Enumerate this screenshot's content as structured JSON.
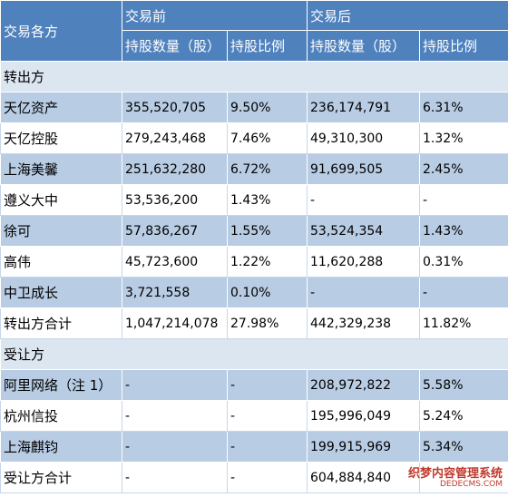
{
  "header": {
    "party_col": "交易各方",
    "before_group": "交易前",
    "after_group": "交易后",
    "shares_label": "持股数量（股）",
    "ratio_label": "持股比例"
  },
  "sections": [
    {
      "title": "转出方",
      "rows": [
        {
          "name": "天亿资产",
          "before_shares": "355,520,705",
          "before_ratio": "9.50%",
          "after_shares": "236,174,791",
          "after_ratio": "6.31%"
        },
        {
          "name": "天亿控股",
          "before_shares": "279,243,468",
          "before_ratio": "7.46%",
          "after_shares": "49,310,300",
          "after_ratio": "1.32%"
        },
        {
          "name": "上海美馨",
          "before_shares": "251,632,280",
          "before_ratio": "6.72%",
          "after_shares": "91,699,505",
          "after_ratio": "2.45%"
        },
        {
          "name": "遵义大中",
          "before_shares": "53,536,200",
          "before_ratio": "1.43%",
          "after_shares": "-",
          "after_ratio": "-"
        },
        {
          "name": "徐可",
          "before_shares": "57,836,267",
          "before_ratio": "1.55%",
          "after_shares": "53,524,354",
          "after_ratio": "1.43%"
        },
        {
          "name": "高伟",
          "before_shares": "45,723,600",
          "before_ratio": "1.22%",
          "after_shares": "11,620,288",
          "after_ratio": "0.31%"
        },
        {
          "name": "中卫成长",
          "before_shares": "3,721,558",
          "before_ratio": "0.10%",
          "after_shares": "-",
          "after_ratio": "-"
        },
        {
          "name": "转出方合计",
          "before_shares": "1,047,214,078",
          "before_ratio": "27.98%",
          "after_shares": "442,329,238",
          "after_ratio": "11.82%"
        }
      ]
    },
    {
      "title": "受让方",
      "rows": [
        {
          "name": "阿里网络（注 1）",
          "before_shares": "-",
          "before_ratio": "-",
          "after_shares": "208,972,822",
          "after_ratio": "5.58%"
        },
        {
          "name": "杭州信投",
          "before_shares": "-",
          "before_ratio": "-",
          "after_shares": "195,996,049",
          "after_ratio": "5.24%"
        },
        {
          "name": "上海麒钧",
          "before_shares": "-",
          "before_ratio": "-",
          "after_shares": "199,915,969",
          "after_ratio": "5.34%"
        },
        {
          "name": "受让方合计",
          "before_shares": "-",
          "before_ratio": "-",
          "after_shares": "604,884,840",
          "after_ratio": ""
        }
      ]
    }
  ],
  "watermark": {
    "cn": "织梦内容管理系统",
    "en": "DEDECMS.COM"
  }
}
